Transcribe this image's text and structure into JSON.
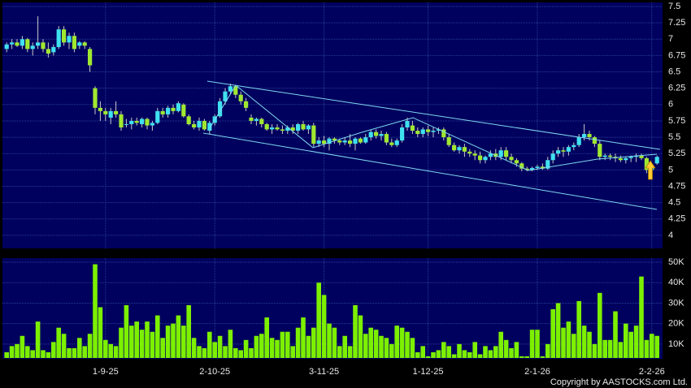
{
  "footer": "Copyright by AASTOCKS.com Ltd.",
  "chart_data": [
    {
      "type": "candlestick",
      "up_color": "#3fe0f0",
      "down_color": "#a0e830",
      "wick_color": "#c8c8c8",
      "grid": true,
      "ylim": [
        3.8,
        7.5
      ],
      "yticks": [
        4,
        4.25,
        4.5,
        4.75,
        5,
        5.25,
        5.5,
        5.75,
        6,
        6.25,
        6.5,
        6.75,
        7,
        7.25,
        7.5
      ],
      "open": [
        6.85,
        6.92,
        6.95,
        6.9,
        7.0,
        6.85,
        6.9,
        6.95,
        6.85,
        6.8,
        6.88,
        7.15,
        6.95,
        7.05,
        6.9,
        6.95,
        6.85,
        6.25,
        5.95,
        5.9,
        5.8,
        5.9,
        5.85,
        5.7,
        5.7,
        5.75,
        5.7,
        5.78,
        5.68,
        5.72,
        5.9,
        5.85,
        5.95,
        5.9,
        6.0,
        5.82,
        5.7,
        5.65,
        5.75,
        5.6,
        5.72,
        5.82,
        6.05,
        6.2,
        6.28,
        6.15,
        6.05,
        5.8,
        5.75,
        5.78,
        5.7,
        5.62,
        5.65,
        5.62,
        5.6,
        5.65,
        5.6,
        5.7,
        5.62,
        5.68,
        5.4,
        5.45,
        5.4,
        5.48,
        5.45,
        5.42,
        5.45,
        5.4,
        5.48,
        5.42,
        5.5,
        5.58,
        5.52,
        5.55,
        5.42,
        5.38,
        5.45,
        5.65,
        5.68,
        5.6,
        5.55,
        5.62,
        5.58,
        5.6,
        5.62,
        5.5,
        5.38,
        5.3,
        5.35,
        5.28,
        5.25,
        5.22,
        5.15,
        5.2,
        5.25,
        5.2,
        5.3,
        5.2,
        5.15,
        5.1,
        5.02,
        5.0,
        5.03,
        5.05,
        5.02,
        5.15,
        5.25,
        5.3,
        5.28,
        5.35,
        5.38,
        5.5,
        5.55,
        5.5,
        5.4,
        5.2,
        5.22,
        5.2,
        5.18,
        5.15,
        5.18,
        5.2,
        5.22,
        5.18,
        5.0,
        5.1
      ],
      "high": [
        6.95,
        7.0,
        7.0,
        7.05,
        7.02,
        6.95,
        7.35,
        7.0,
        6.95,
        6.92,
        7.2,
        7.2,
        7.1,
        7.1,
        6.97,
        6.97,
        6.88,
        6.28,
        6.05,
        5.95,
        5.95,
        6.05,
        5.9,
        5.78,
        5.8,
        5.8,
        5.8,
        5.8,
        5.75,
        5.95,
        5.95,
        5.98,
        6.0,
        6.05,
        6.02,
        5.85,
        5.75,
        5.8,
        5.78,
        5.75,
        5.85,
        6.1,
        6.25,
        6.32,
        6.3,
        6.2,
        6.1,
        5.85,
        5.8,
        5.8,
        5.72,
        5.7,
        5.7,
        5.68,
        5.68,
        5.7,
        5.72,
        5.75,
        5.7,
        5.72,
        5.5,
        5.52,
        5.5,
        5.5,
        5.48,
        5.5,
        5.55,
        5.5,
        5.5,
        5.55,
        5.62,
        5.62,
        5.6,
        5.58,
        5.48,
        5.48,
        5.7,
        5.8,
        5.75,
        5.65,
        5.65,
        5.68,
        5.65,
        5.65,
        5.65,
        5.55,
        5.42,
        5.38,
        5.4,
        5.32,
        5.3,
        5.28,
        5.22,
        5.3,
        5.32,
        5.35,
        5.35,
        5.25,
        5.18,
        5.12,
        5.05,
        5.05,
        5.08,
        5.1,
        5.2,
        5.3,
        5.35,
        5.35,
        5.38,
        5.42,
        5.55,
        5.7,
        5.6,
        5.52,
        5.45,
        5.25,
        5.25,
        5.25,
        5.22,
        5.2,
        5.22,
        5.25,
        5.25,
        5.2,
        5.1,
        5.22
      ],
      "low": [
        6.8,
        6.85,
        6.88,
        6.85,
        6.8,
        6.75,
        6.85,
        6.8,
        6.72,
        6.75,
        6.85,
        6.9,
        6.85,
        6.8,
        6.85,
        6.85,
        6.5,
        5.85,
        5.75,
        5.75,
        5.7,
        5.8,
        5.6,
        5.65,
        5.62,
        5.68,
        5.65,
        5.62,
        5.6,
        5.7,
        5.8,
        5.8,
        5.85,
        5.88,
        5.8,
        5.68,
        5.62,
        5.6,
        5.6,
        5.55,
        5.68,
        5.8,
        6.0,
        6.15,
        6.1,
        6.0,
        5.9,
        5.7,
        5.68,
        5.65,
        5.6,
        5.55,
        5.6,
        5.55,
        5.55,
        5.55,
        5.55,
        5.6,
        5.55,
        5.35,
        5.35,
        5.35,
        5.3,
        5.4,
        5.38,
        5.38,
        5.35,
        5.3,
        5.4,
        5.4,
        5.45,
        5.48,
        5.45,
        5.38,
        5.35,
        5.35,
        5.42,
        5.6,
        5.55,
        5.5,
        5.5,
        5.52,
        5.5,
        5.55,
        5.45,
        5.35,
        5.28,
        5.25,
        5.2,
        5.2,
        5.15,
        5.1,
        5.1,
        5.15,
        5.15,
        5.15,
        5.15,
        5.1,
        5.05,
        4.98,
        4.98,
        4.98,
        5.0,
        5.0,
        5.0,
        5.1,
        5.2,
        5.2,
        5.22,
        5.3,
        5.35,
        5.45,
        5.45,
        5.35,
        5.15,
        5.15,
        5.15,
        5.12,
        5.12,
        5.1,
        5.12,
        5.12,
        5.15,
        4.95,
        4.95,
        5.08
      ],
      "close": [
        6.92,
        6.95,
        6.9,
        7.0,
        6.85,
        6.9,
        6.95,
        6.85,
        6.78,
        6.88,
        7.15,
        6.95,
        7.05,
        6.85,
        6.95,
        6.9,
        6.6,
        5.95,
        5.9,
        5.85,
        5.9,
        5.85,
        5.65,
        5.7,
        5.75,
        5.72,
        5.78,
        5.68,
        5.72,
        5.9,
        5.85,
        5.95,
        5.9,
        6.02,
        5.82,
        5.7,
        5.65,
        5.75,
        5.62,
        5.72,
        5.82,
        6.05,
        6.2,
        6.28,
        6.15,
        6.05,
        5.95,
        5.75,
        5.78,
        5.7,
        5.62,
        5.65,
        5.62,
        5.6,
        5.65,
        5.6,
        5.7,
        5.62,
        5.68,
        5.4,
        5.45,
        5.4,
        5.48,
        5.45,
        5.42,
        5.45,
        5.4,
        5.48,
        5.42,
        5.5,
        5.58,
        5.52,
        5.55,
        5.42,
        5.38,
        5.45,
        5.65,
        5.75,
        5.6,
        5.55,
        5.62,
        5.58,
        5.6,
        5.62,
        5.5,
        5.38,
        5.3,
        5.35,
        5.28,
        5.25,
        5.22,
        5.15,
        5.2,
        5.25,
        5.2,
        5.3,
        5.2,
        5.15,
        5.1,
        5.02,
        5.0,
        5.03,
        5.05,
        5.02,
        5.15,
        5.25,
        5.3,
        5.28,
        5.35,
        5.38,
        5.5,
        5.55,
        5.5,
        5.4,
        5.2,
        5.22,
        5.2,
        5.18,
        5.15,
        5.18,
        5.2,
        5.22,
        5.18,
        5.0,
        5.05,
        5.2
      ]
    },
    {
      "type": "bar",
      "color": "#7cf000",
      "grid": true,
      "ylim": [
        3200,
        51200
      ],
      "yticks": [
        {
          "value": 10000,
          "label": "10K"
        },
        {
          "value": 20000,
          "label": "20K"
        },
        {
          "value": 30000,
          "label": "30K"
        },
        {
          "value": 40000,
          "label": "40K"
        },
        {
          "value": 50000,
          "label": "50K"
        }
      ],
      "categories": [
        null,
        null,
        null,
        null,
        null,
        null,
        null,
        null,
        null,
        null,
        null,
        null,
        null,
        null,
        null,
        null,
        null,
        null,
        null,
        "1-9-25",
        null,
        null,
        null,
        null,
        null,
        null,
        null,
        null,
        null,
        null,
        null,
        null,
        null,
        null,
        null,
        null,
        null,
        null,
        null,
        null,
        "2-10-25",
        null,
        null,
        null,
        null,
        null,
        null,
        null,
        null,
        null,
        null,
        null,
        null,
        null,
        null,
        null,
        null,
        null,
        null,
        null,
        null,
        "3-11-25",
        null,
        null,
        null,
        null,
        null,
        null,
        null,
        null,
        null,
        null,
        null,
        null,
        null,
        null,
        null,
        null,
        null,
        null,
        null,
        "1-12-25",
        null,
        null,
        null,
        null,
        null,
        null,
        null,
        null,
        null,
        null,
        null,
        null,
        null,
        null,
        null,
        null,
        null,
        null,
        null,
        null,
        "2-1-26",
        null,
        null,
        null,
        null,
        null,
        null,
        null,
        null,
        null,
        null,
        null,
        null,
        null,
        null,
        null,
        null,
        null,
        null,
        null,
        null,
        null,
        "2-2-26",
        null
      ],
      "values": [
        6000,
        9000,
        10000,
        14000,
        9000,
        7000,
        21000,
        7000,
        6000,
        11000,
        18000,
        15000,
        8000,
        8000,
        13000,
        9000,
        15000,
        49000,
        28000,
        12000,
        10000,
        9000,
        18000,
        29000,
        19000,
        21000,
        17000,
        21000,
        16000,
        24000,
        13000,
        19000,
        20000,
        24000,
        19000,
        29000,
        13000,
        9000,
        8000,
        16000,
        11000,
        14000,
        9000,
        17000,
        8000,
        7000,
        12000,
        8000,
        14000,
        15000,
        23000,
        13000,
        12000,
        16000,
        16000,
        9000,
        18000,
        23000,
        14000,
        18000,
        40000,
        34000,
        20000,
        18000,
        9000,
        14000,
        9000,
        29000,
        24000,
        15000,
        18000,
        17000,
        14000,
        13000,
        10000,
        19000,
        18000,
        16000,
        13000,
        6000,
        9000,
        4000,
        6000,
        7000,
        11000,
        9000,
        5000,
        10000,
        7000,
        6000,
        11000,
        5000,
        9000,
        7000,
        9000,
        16000,
        12000,
        8000,
        11000,
        4000,
        4000,
        17000,
        17000,
        4000,
        10000,
        27000,
        30000,
        18000,
        21000,
        15000,
        31000,
        19000,
        16000,
        10000,
        35000,
        12000,
        12000,
        26000,
        11000,
        20000,
        16000,
        19000,
        43000,
        12000,
        15000,
        14000
      ]
    }
  ]
}
